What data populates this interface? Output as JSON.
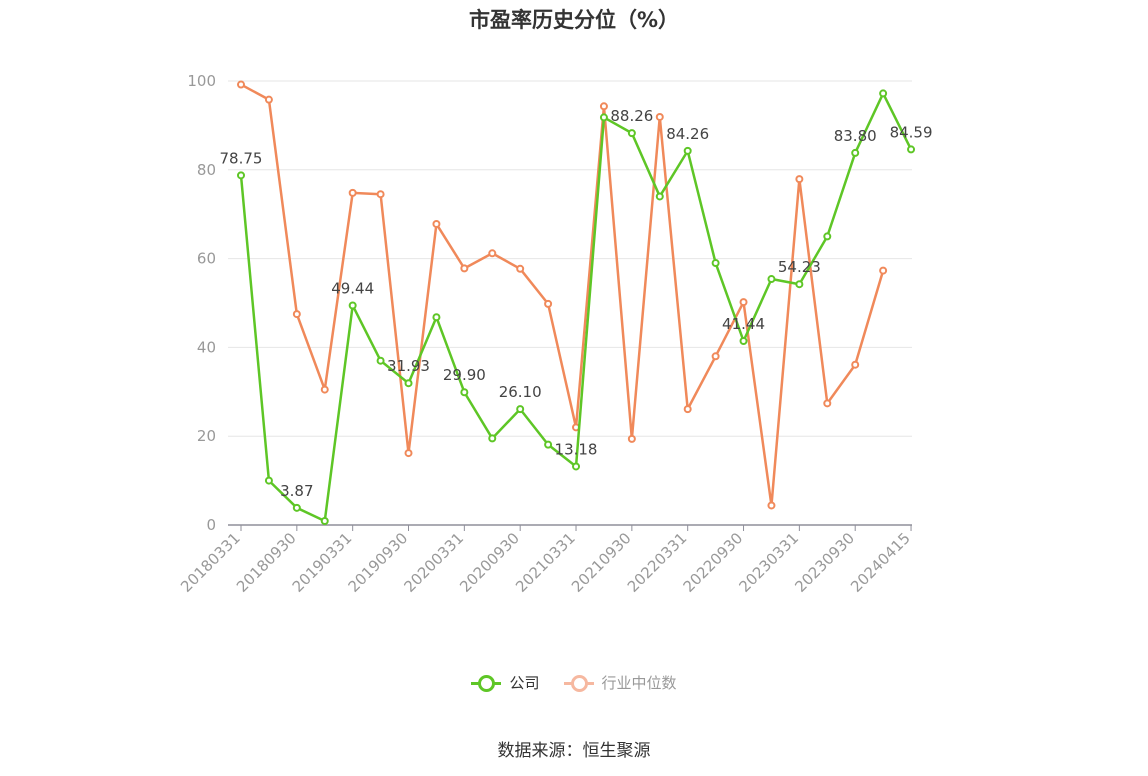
{
  "title": "市盈率历史分位（%）",
  "source": "数据来源：恒生聚源",
  "legend": {
    "company_label": "公司",
    "industry_label": "行业中位数"
  },
  "colors": {
    "company": "#5ec626",
    "industry": "#f0895a",
    "industry_legend": "#f6b8a0",
    "grid": "#e6e6e6",
    "axis": "#8f8f9a",
    "tick_text": "#999999"
  },
  "chart_data": {
    "type": "line",
    "title": "市盈率历史分位（%）",
    "ylim": [
      0,
      100
    ],
    "yticks": [
      0,
      20,
      40,
      60,
      80,
      100
    ],
    "grid": true,
    "legend_position": "bottom",
    "x_tick_labels": [
      "20180331",
      "20180930",
      "20190331",
      "20190930",
      "20200331",
      "20200930",
      "20210331",
      "20210930",
      "20220331",
      "20220930",
      "20230331",
      "20230930",
      "20240415"
    ],
    "x_tick_indices": [
      0,
      2,
      4,
      6,
      8,
      10,
      12,
      14,
      16,
      18,
      20,
      22,
      24
    ],
    "x": [
      "20180331",
      "20180630",
      "20180930",
      "20181231",
      "20190331",
      "20190630",
      "20190930",
      "20191231",
      "20200331",
      "20200630",
      "20200930",
      "20201231",
      "20210331",
      "20210630",
      "20210930",
      "20211231",
      "20220331",
      "20220630",
      "20220930",
      "20221231",
      "20230331",
      "20230630",
      "20230930",
      "20231231",
      "20240415"
    ],
    "series": [
      {
        "name": "公司",
        "values": [
          78.75,
          10.0,
          3.87,
          0.9,
          49.44,
          37.0,
          31.93,
          46.8,
          29.9,
          19.5,
          26.1,
          18.1,
          13.18,
          91.8,
          88.26,
          74.0,
          84.26,
          59.0,
          41.44,
          55.4,
          54.23,
          65.0,
          83.8,
          97.2,
          84.59
        ],
        "labels": [
          "78.75",
          "",
          "3.87",
          "",
          "49.44",
          "",
          "31.93",
          "",
          "29.90",
          "",
          "26.10",
          "",
          "13.18",
          "",
          "88.26",
          "",
          "84.26",
          "",
          "41.44",
          "",
          "54.23",
          "",
          "83.80",
          "",
          "84.59"
        ]
      },
      {
        "name": "行业中位数",
        "values": [
          99.2,
          95.8,
          47.5,
          30.5,
          74.8,
          74.5,
          16.2,
          67.8,
          57.8,
          61.2,
          57.7,
          49.8,
          22.0,
          94.3,
          19.4,
          91.9,
          26.1,
          38.0,
          50.2,
          4.4,
          77.9,
          27.4,
          36.1,
          57.3,
          null
        ]
      }
    ]
  }
}
